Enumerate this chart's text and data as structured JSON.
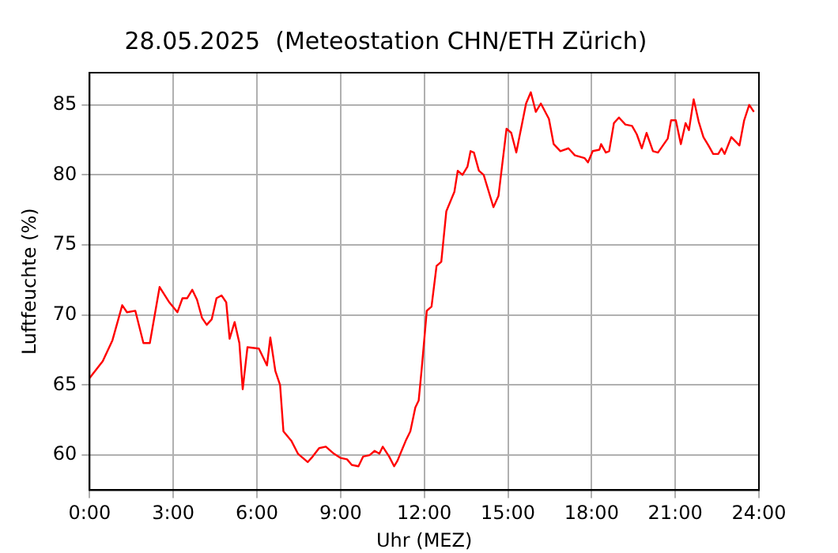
{
  "chart_data": {
    "type": "line",
    "title": "28.05.2025  (Meteostation CHN/ETH Zürich)",
    "xlabel": "Uhr (MEZ)",
    "ylabel": "Luftfeuchte (%)",
    "x": [
      0,
      0.47,
      0.82,
      1.17,
      1.34,
      1.64,
      1.93,
      2.16,
      2.51,
      2.86,
      3.15,
      3.33,
      3.5,
      3.68,
      3.85,
      4.03,
      4.2,
      4.38,
      4.55,
      4.73,
      4.9,
      5.02,
      5.2,
      5.37,
      5.49,
      5.66,
      6.07,
      6.36,
      6.48,
      6.66,
      6.83,
      6.95,
      7.24,
      7.47,
      7.82,
      8.0,
      8.23,
      8.47,
      8.76,
      8.99,
      9.23,
      9.4,
      9.64,
      9.81,
      10.04,
      10.22,
      10.39,
      10.51,
      10.74,
      10.92,
      11.04,
      11.33,
      11.5,
      11.68,
      11.8,
      11.91,
      12.09,
      12.26,
      12.44,
      12.61,
      12.79,
      13.08,
      13.2,
      13.37,
      13.55,
      13.66,
      13.78,
      13.96,
      14.13,
      14.48,
      14.66,
      14.95,
      15.12,
      15.3,
      15.65,
      15.82,
      16.0,
      16.18,
      16.47,
      16.64,
      16.88,
      17.17,
      17.4,
      17.75,
      17.87,
      18.04,
      18.28,
      18.34,
      18.51,
      18.63,
      18.8,
      18.98,
      19.21,
      19.45,
      19.62,
      19.8,
      19.97,
      20.2,
      20.38,
      20.73,
      20.85,
      21.02,
      21.2,
      21.37,
      21.49,
      21.66,
      21.84,
      22.01,
      22.19,
      22.36,
      22.54,
      22.66,
      22.77,
      23.01,
      23.3,
      23.47,
      23.65,
      23.82
    ],
    "series": [
      {
        "color": "#ff0000",
        "values": [
          65.5,
          66.7,
          68.2,
          70.7,
          70.2,
          70.3,
          68.0,
          68.0,
          72.0,
          70.9,
          70.2,
          71.2,
          71.2,
          71.8,
          71.1,
          69.8,
          69.3,
          69.7,
          71.2,
          71.4,
          70.9,
          68.3,
          69.5,
          68.0,
          64.7,
          67.7,
          67.6,
          66.4,
          68.4,
          66.0,
          65.0,
          61.7,
          61.0,
          60.1,
          59.5,
          59.9,
          60.5,
          60.6,
          60.1,
          59.8,
          59.7,
          59.3,
          59.2,
          59.9,
          60.0,
          60.3,
          60.1,
          60.6,
          59.9,
          59.2,
          59.6,
          61.0,
          61.7,
          63.4,
          63.9,
          66.2,
          70.3,
          70.6,
          73.5,
          73.8,
          77.4,
          78.8,
          80.3,
          80.0,
          80.6,
          81.7,
          81.6,
          80.3,
          80.0,
          77.7,
          78.5,
          83.3,
          83.0,
          81.6,
          85.1,
          85.9,
          84.5,
          85.1,
          84.0,
          82.2,
          81.7,
          81.9,
          81.4,
          81.2,
          80.9,
          81.7,
          81.8,
          82.2,
          81.6,
          81.7,
          83.7,
          84.1,
          83.6,
          83.5,
          82.9,
          81.9,
          83.0,
          81.7,
          81.6,
          82.6,
          83.9,
          83.9,
          82.2,
          83.7,
          83.2,
          85.4,
          83.8,
          82.7,
          82.1,
          81.5,
          81.5,
          81.9,
          81.5,
          82.7,
          82.1,
          83.9,
          85.0,
          84.5
        ]
      }
    ],
    "xlim": [
      0,
      24
    ],
    "xticks": [
      {
        "value": 0,
        "label": "0:00"
      },
      {
        "value": 3,
        "label": "3:00"
      },
      {
        "value": 6,
        "label": "6:00"
      },
      {
        "value": 9,
        "label": "9:00"
      },
      {
        "value": 12,
        "label": "12:00"
      },
      {
        "value": 15,
        "label": "15:00"
      },
      {
        "value": 18,
        "label": "18:00"
      },
      {
        "value": 21,
        "label": "21:00"
      },
      {
        "value": 24,
        "label": "24:00"
      }
    ],
    "ylim": [
      57.5,
      87.3
    ],
    "yticks": [
      60,
      65,
      70,
      75,
      80,
      85
    ],
    "grid": true,
    "marker": "none",
    "line_style": "solid",
    "legend": false
  }
}
